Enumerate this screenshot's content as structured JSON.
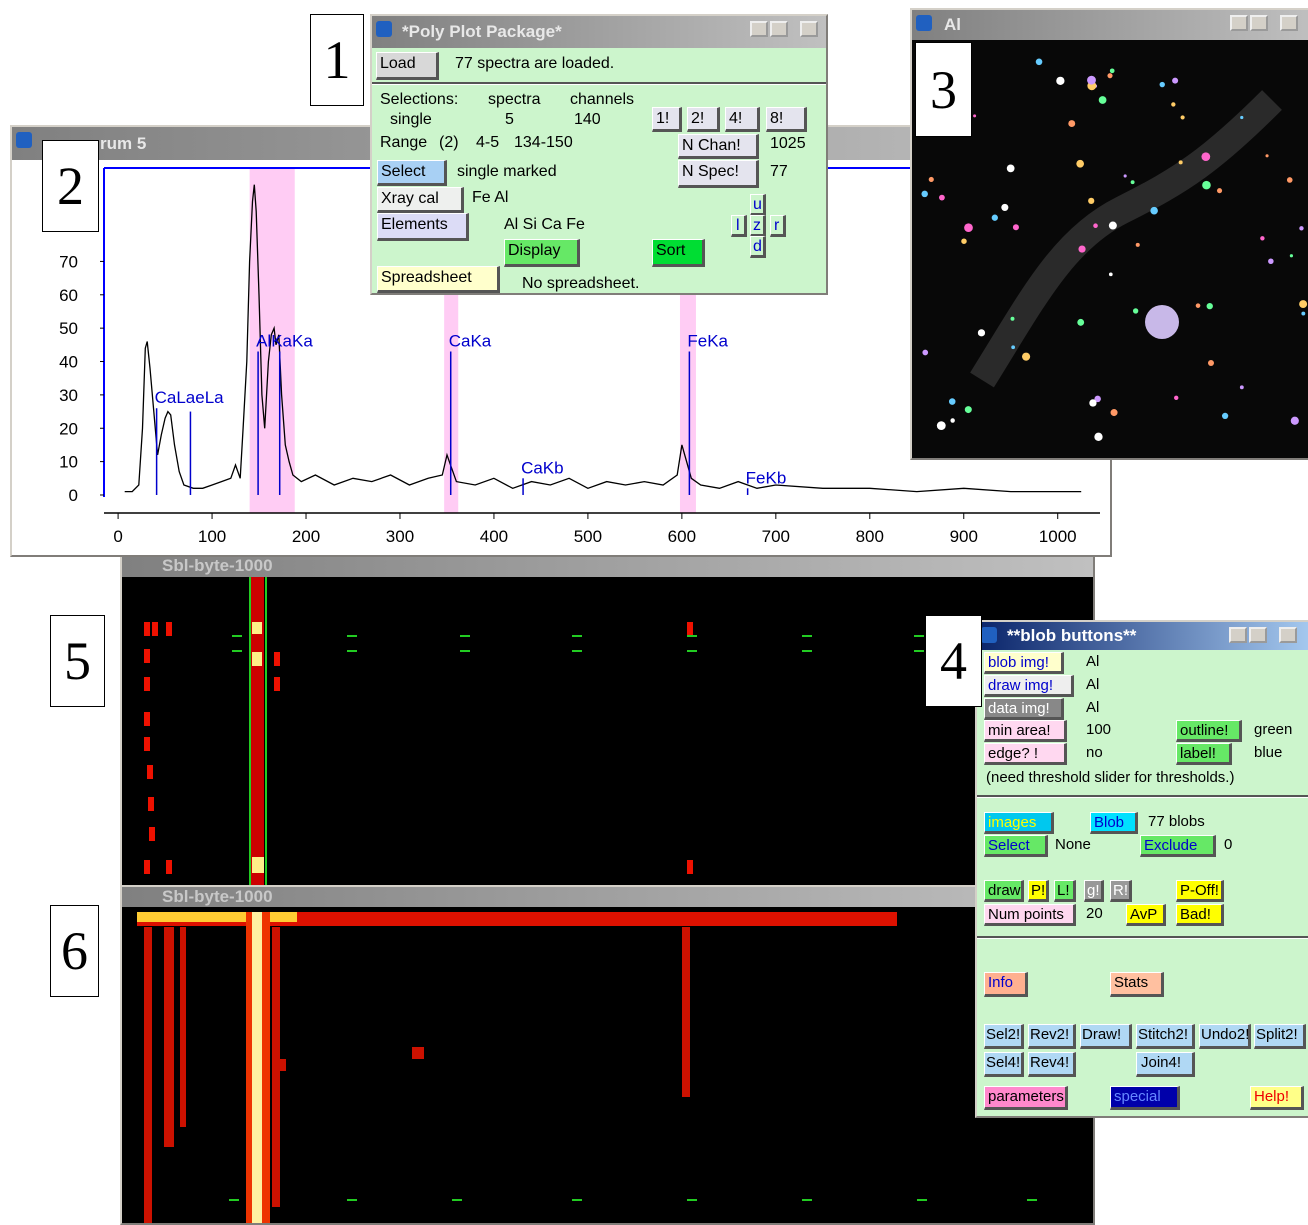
{
  "figure_labels": [
    "1",
    "2",
    "3",
    "4",
    "5",
    "6"
  ],
  "poly_plot_window": {
    "title": "*Poly Plot Package*",
    "load_button": "Load",
    "load_status": "77 spectra are loaded.",
    "selections_label": "Selections:",
    "spectra_header": "spectra",
    "channels_header": "channels",
    "selection_type": "single",
    "selected_spectra": "5",
    "selected_channels": "140",
    "range_label": "Range",
    "range_count": "(2)",
    "range_spectra": "4-5",
    "range_channels": "134-150",
    "multiplier_buttons": [
      "1!",
      "2!",
      "4!",
      "8!"
    ],
    "n_chan_button": "N Chan!",
    "n_chan_value": "1025",
    "select_button": "Select",
    "select_status": "single marked",
    "n_spec_button": "N Spec!",
    "n_spec_value": "77",
    "xray_cal_button": "Xray cal",
    "xray_cal_value": "Fe Al",
    "elements_button": "Elements",
    "elements_value": "Al Si Ca Fe",
    "nav_buttons": {
      "up": "u",
      "zoom": "z",
      "down": "d",
      "left": "l",
      "right": "r"
    },
    "display_button": "Display",
    "sort_button": "Sort",
    "spreadsheet_button": "Spreadsheet",
    "spreadsheet_status": "No spreadsheet."
  },
  "spectrum_window": {
    "title": "rum 5"
  },
  "chart_data": {
    "type": "line",
    "x": [
      7,
      15,
      22,
      26,
      29,
      31,
      34,
      38,
      42,
      46,
      50,
      53,
      56,
      60,
      65,
      70,
      80,
      90,
      100,
      110,
      120,
      125,
      130,
      133,
      137,
      140,
      143,
      145,
      147,
      150,
      153,
      156,
      160,
      163,
      166,
      168,
      171,
      174,
      178,
      182,
      186,
      195,
      210,
      230,
      250,
      270,
      290,
      310,
      330,
      345,
      350,
      355,
      360,
      380,
      400,
      420,
      440,
      460,
      480,
      500,
      520,
      540,
      560,
      580,
      595,
      600,
      605,
      610,
      620,
      640,
      660,
      680,
      700,
      750,
      800,
      850,
      900,
      950,
      1000,
      1025
    ],
    "values": [
      1,
      1,
      3,
      20,
      44,
      46,
      38,
      25,
      12,
      18,
      23,
      25,
      24,
      15,
      7,
      3,
      2,
      2,
      3,
      4,
      5,
      9,
      5,
      20,
      40,
      70,
      88,
      93,
      85,
      60,
      30,
      20,
      40,
      48,
      50,
      45,
      48,
      30,
      15,
      10,
      6,
      4,
      6,
      3,
      5,
      4,
      6,
      3,
      5,
      6,
      12,
      8,
      4,
      3,
      5,
      2,
      4,
      3,
      5,
      2,
      4,
      3,
      4,
      3,
      6,
      15,
      10,
      5,
      3,
      2,
      4,
      2,
      3,
      2,
      2,
      1,
      2,
      1,
      1,
      1
    ],
    "color": "#000000",
    "xlim": [
      -15,
      1045
    ],
    "ylim": [
      -5.4,
      98
    ],
    "xticks": [
      0,
      100,
      200,
      300,
      400,
      500,
      600,
      700,
      800,
      900,
      1000
    ],
    "yticks": [
      0,
      10,
      20,
      30,
      40,
      50,
      60,
      70
    ],
    "marker_color": "#0000cc",
    "line_markers": [
      {
        "x": 41,
        "height": 26,
        "label": "CaLaeLa"
      },
      {
        "x": 77,
        "height": 25
      },
      {
        "x": 149,
        "height": 43,
        "label": "AlKaKa"
      },
      {
        "x": 172,
        "height": 43
      },
      {
        "x": 354,
        "height": 43,
        "label": "CaKa"
      },
      {
        "x": 431,
        "height": 5,
        "label": "CaKb"
      },
      {
        "x": 608,
        "height": 43,
        "label": "FeKa"
      },
      {
        "x": 670,
        "height": 2,
        "label": "FeKb"
      }
    ],
    "band_color": "#ffccf4",
    "highlight_bands": [
      [
        140,
        188
      ],
      [
        347,
        362
      ],
      [
        598,
        615
      ]
    ]
  },
  "image_window": {
    "title": "Al"
  },
  "map_window_top": {
    "title": "Sbl-byte-1000"
  },
  "map_window_bottom": {
    "title": "Sbl-byte-1000"
  },
  "blob_window": {
    "title": "**blob buttons**",
    "blob_img_button": "blob img!",
    "blob_img_value": "Al",
    "draw_img_button": "draw img!",
    "draw_img_value": "Al",
    "data_img_button": "data img!",
    "data_img_value": "Al",
    "min_area_button": "min area!",
    "min_area_value": "100",
    "outline_button": "outline!",
    "outline_value": "green",
    "edge_button": "edge? !",
    "edge_value": "no",
    "label_button": "label!",
    "label_value": "blue",
    "threshold_note": "(need threshold slider for thresholds.)",
    "images_button": "images",
    "blob_button": "Blob",
    "blob_count": "77 blobs",
    "select_button": "Select",
    "select_value": "None",
    "exclude_button": "Exclude",
    "exclude_value": "0",
    "draw_button": "draw",
    "p_button": "P!",
    "l_button": "L!",
    "g_button": "g!",
    "r_button": "R!",
    "p_off_button": "P-Off!",
    "num_points_button": "Num points",
    "num_points_value": "20",
    "avp_button": "AvP",
    "bad_button": "Bad!",
    "info_button": "Info",
    "stats_button": "Stats",
    "row2_buttons": [
      "Sel2!",
      "Rev2!",
      "Draw!",
      "Stitch2!",
      "Undo2!",
      "Split2!"
    ],
    "row4_buttons": [
      "Sel4!",
      "Rev4!",
      "Join4!"
    ],
    "parameters_button": "parameters",
    "special_button": "special",
    "help_button": "Help!"
  }
}
